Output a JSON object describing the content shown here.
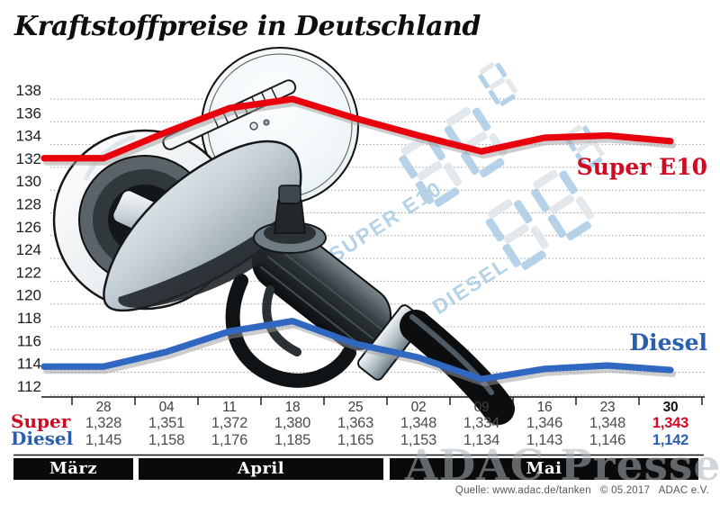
{
  "header": {
    "title": "Kraftstoffpreise in Deutschland"
  },
  "pump_display": {
    "super_label": "SUPER E10",
    "diesel_label": "DIESEL",
    "digits_shown": "8.88"
  },
  "chart_data": {
    "type": "line",
    "title": "Kraftstoffpreise in Deutschland",
    "xlabel": "",
    "ylabel": "",
    "ylim": [
      112,
      138
    ],
    "yticks": [
      112,
      114,
      116,
      118,
      120,
      122,
      124,
      126,
      128,
      130,
      132,
      134,
      136,
      138
    ],
    "grid": "dotted-horizontal",
    "legend_position": "inline-right-of-line",
    "categories": [
      "28",
      "04",
      "11",
      "18",
      "25",
      "02",
      "09",
      "16",
      "23",
      "30"
    ],
    "month_groups": [
      {
        "label": "März",
        "columns": 1
      },
      {
        "label": "April",
        "columns": 4
      },
      {
        "label": "Mai",
        "columns": 5
      }
    ],
    "series": [
      {
        "name": "Super",
        "label": "Super E10",
        "color": "#e8000d",
        "values": [
          132.8,
          135.1,
          137.2,
          138.0,
          136.3,
          134.8,
          133.4,
          134.6,
          134.8,
          134.3
        ]
      },
      {
        "name": "Diesel",
        "label": "Diesel",
        "color": "#3067c0",
        "values": [
          114.5,
          115.8,
          117.6,
          118.5,
          116.5,
          115.3,
          113.4,
          114.3,
          114.6,
          114.2
        ]
      }
    ]
  },
  "table": {
    "rows": [
      {
        "label": "Super",
        "color": "#ce0b24",
        "values": [
          "1,328",
          "1,351",
          "1,372",
          "1,380",
          "1,363",
          "1,348",
          "1,334",
          "1,346",
          "1,348",
          "1,343"
        ]
      },
      {
        "label": "Diesel",
        "color": "#2a5fad",
        "values": [
          "1,145",
          "1,158",
          "1,176",
          "1,185",
          "1,165",
          "1,153",
          "1,134",
          "1,143",
          "1,146",
          "1,142"
        ]
      }
    ]
  },
  "footer": {
    "source": "Quelle: www.adac.de/tanken   © 05.2017   ADAC e.V."
  },
  "watermark": {
    "press_text": "ADAC Presse"
  },
  "colors": {
    "super_line": "#e8000d",
    "diesel_line": "#3067c0",
    "super_text": "#ce0b24",
    "diesel_text": "#2a5fad",
    "display_blue": "#a9cbe6",
    "display_pale": "#dde4e9",
    "month_bar": "#0a0a0a"
  }
}
